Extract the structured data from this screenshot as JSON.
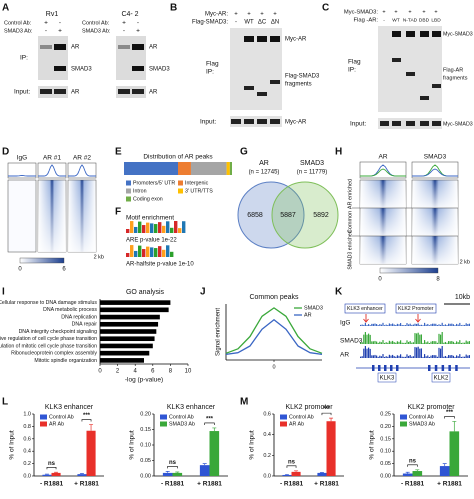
{
  "panels": {
    "letters": [
      "A",
      "B",
      "C",
      "D",
      "E",
      "F",
      "G",
      "H",
      "I",
      "J",
      "K",
      "L",
      "M"
    ],
    "A": {
      "cell_lines": [
        "Rv1",
        "C4- 2"
      ],
      "antibodies": [
        "Control Ab:",
        "SMAD3 Ab:"
      ],
      "minus": "-",
      "plus": "+",
      "ip": "IP:",
      "input": "Input:",
      "ip_bands": [
        "AR",
        "SMAD3"
      ],
      "input_band": "AR"
    },
    "B": {
      "rows": [
        "Myc-AR:",
        "Flag-SMAD3:"
      ],
      "lanes": [
        "-",
        "WT",
        "ΔC",
        "ΔN"
      ],
      "plus": "+",
      "flag_ip": [
        "Flag",
        "IP:"
      ],
      "bands": [
        "Myc-AR",
        "Flag-SMAD3",
        "fragments"
      ],
      "input": "Input:",
      "input_band": "Myc-AR"
    },
    "C": {
      "rows": [
        "Myc-SMAD3:",
        "Flag -AR:"
      ],
      "lanes": [
        "-",
        "WT",
        "N-TAD",
        "DBD",
        "LBD"
      ],
      "plus": "+",
      "flag_ip": [
        "Flag",
        "IP:"
      ],
      "bands": [
        "Myc-SMAD3",
        "Flag-AR",
        "fragments"
      ],
      "input": "Input:",
      "input_band": "Myc-SMAD3"
    },
    "D": {
      "columns": [
        "IgG",
        "AR #1",
        "AR #2"
      ],
      "scale": [
        "0",
        "6"
      ],
      "distance": "2 kb"
    },
    "F": {
      "title": "Motif enrichment",
      "motifs": [
        "ARE p-value 1e-22",
        "AR-halfsite p-value 1e-10"
      ]
    },
    "H": {
      "columns": [
        "AR",
        "SMAD3"
      ],
      "groups": [
        "AR enriched",
        "Common",
        "SMAD3 enriched"
      ],
      "scale": [
        "0",
        "8"
      ],
      "distance": "2 kb"
    },
    "K": {
      "scale": "10kb",
      "regions": [
        "KLK3 enhancer",
        "KLK2 Promoter"
      ],
      "tracks": [
        "IgG",
        "SMAD3",
        "AR"
      ],
      "genes": [
        "KLK3",
        "KLK2"
      ]
    }
  },
  "chart_data": [
    {
      "type": "bar",
      "orientation": "horizontal",
      "stacked": true,
      "title": "Distribution of AR peaks",
      "xlim": [
        0,
        100
      ],
      "series": [
        {
          "name": "Promoters/5' UTR",
          "color": "#4472c4",
          "values": [
            50
          ]
        },
        {
          "name": "Intergenic",
          "color": "#ed7d31",
          "values": [
            12
          ]
        },
        {
          "name": "Intron",
          "color": "#a5a5a5",
          "values": [
            33
          ]
        },
        {
          "name": "3' UTR/TTS",
          "color": "#ffc000",
          "values": [
            3
          ]
        },
        {
          "name": "Coding exon",
          "color": "#70ad47",
          "values": [
            2
          ]
        }
      ]
    },
    {
      "type": "venn",
      "sets": [
        {
          "name": "AR",
          "count_label": "(n = 12745)",
          "color": "#5b7fc4"
        },
        {
          "name": "SMAD3",
          "count_label": "(n = 11779)",
          "color": "#7fbf5a"
        }
      ],
      "values": [
        6858,
        5887,
        5892
      ]
    },
    {
      "type": "bar",
      "orientation": "horizontal",
      "title": "GO analysis",
      "xlabel": "-log (p-value)",
      "color": "#000000",
      "categories": [
        "Cellular response to DNA damage stimulus",
        "DNA metabolic process",
        "DNA replication",
        "DNA repair",
        "DNA integrity checkpoint signaling",
        "Negative regulation of cell cycle phase transition",
        "Regulation of mitotic cell cycle phase transition",
        "Ribonucleoprotein complex assembly",
        "Mitotic spindle organization"
      ],
      "values": [
        8.0,
        7.8,
        6.8,
        6.6,
        6.4,
        6.2,
        6.0,
        5.6,
        5.0
      ],
      "xlim": [
        0,
        10
      ],
      "xticks": [
        0,
        2,
        4,
        6,
        8,
        10
      ]
    },
    {
      "type": "line",
      "title": "Common peaks",
      "ylabel": "Signal enrichment",
      "x": [
        -2,
        -1.5,
        -1,
        -0.5,
        0,
        0.5,
        1,
        1.5,
        2
      ],
      "xlim": [
        -2,
        2
      ],
      "xticks": [
        0
      ],
      "ylim": [
        0,
        1
      ],
      "series": [
        {
          "name": "SMAD3",
          "color": "#3aa83a",
          "values": [
            0.12,
            0.2,
            0.42,
            0.78,
            0.93,
            0.78,
            0.42,
            0.2,
            0.12
          ]
        },
        {
          "name": "AR",
          "color": "#3a66c4",
          "values": [
            0.1,
            0.13,
            0.25,
            0.55,
            0.72,
            0.55,
            0.25,
            0.13,
            0.1
          ]
        }
      ]
    },
    {
      "type": "bar",
      "title": "KLK3 enhancer",
      "ylabel": "% of Input",
      "categories": [
        "- R1881",
        "+ R1881"
      ],
      "series": [
        {
          "name": "Control Ab",
          "color": "#2f55d4",
          "values": [
            0.02,
            0.03
          ],
          "errors": [
            0.01,
            0.01
          ]
        },
        {
          "name": "AR Ab",
          "color": "#e8302a",
          "values": [
            0.05,
            0.73
          ],
          "errors": [
            0.01,
            0.1
          ]
        }
      ],
      "annotations": [
        "ns",
        "***"
      ],
      "ylim": [
        0,
        1
      ],
      "yticks": [
        {
          "value": 0,
          "label": "0.0"
        },
        0.2,
        0.4,
        0.6,
        0.8,
        {
          "value": 1,
          "label": "1.0"
        }
      ]
    },
    {
      "type": "bar",
      "title": "KLK3 enhancer",
      "ylabel": "% of Input",
      "categories": [
        "- R1881",
        "+ R1881"
      ],
      "series": [
        {
          "name": "Control Ab",
          "color": "#2f55d4",
          "values": [
            0.01,
            0.035
          ],
          "errors": [
            0.005,
            0.005
          ]
        },
        {
          "name": "SMAD3 Ab",
          "color": "#3aa83a",
          "values": [
            0.01,
            0.145
          ],
          "errors": [
            0.003,
            0.01
          ]
        }
      ],
      "annotations": [
        "ns",
        "***"
      ],
      "ylim": [
        0,
        0.2
      ],
      "yticks": [
        {
          "value": 0,
          "label": "0.00"
        },
        0.05,
        {
          "value": 0.1,
          "label": "0.10"
        },
        0.15,
        {
          "value": 0.2,
          "label": "0.20"
        }
      ]
    },
    {
      "type": "bar",
      "title": "KLK2 promoter",
      "ylabel": "% of Input",
      "categories": [
        "- R1881",
        "+ R1881"
      ],
      "series": [
        {
          "name": "Control Ab",
          "color": "#2f55d4",
          "values": [
            0.01,
            0.03
          ],
          "errors": [
            0.005,
            0.005
          ]
        },
        {
          "name": "AR Ab",
          "color": "#e8302a",
          "values": [
            0.04,
            0.53
          ],
          "errors": [
            0.01,
            0.03
          ]
        }
      ],
      "annotations": [
        "ns",
        "***"
      ],
      "ylim": [
        0,
        0.6
      ],
      "yticks": [
        {
          "value": 0,
          "label": "0.0"
        },
        0.2,
        0.4,
        0.6
      ]
    },
    {
      "type": "bar",
      "title": "KLK2 promoter",
      "ylabel": "% of Input",
      "categories": [
        "- R1881",
        "+ R1881"
      ],
      "series": [
        {
          "name": "Control Ab",
          "color": "#2f55d4",
          "values": [
            0.01,
            0.04
          ],
          "errors": [
            0.005,
            0.01
          ]
        },
        {
          "name": "SMAD3 Ab",
          "color": "#3aa83a",
          "values": [
            0.02,
            0.18
          ],
          "errors": [
            0.005,
            0.04
          ]
        }
      ],
      "annotations": [
        "ns",
        "***"
      ],
      "ylim": [
        0,
        0.25
      ],
      "yticks": [
        {
          "value": 0,
          "label": "0.00"
        },
        0.05,
        {
          "value": 0.1,
          "label": "0.10"
        },
        0.15,
        {
          "value": 0.2,
          "label": "0.20"
        },
        0.25
      ]
    }
  ]
}
